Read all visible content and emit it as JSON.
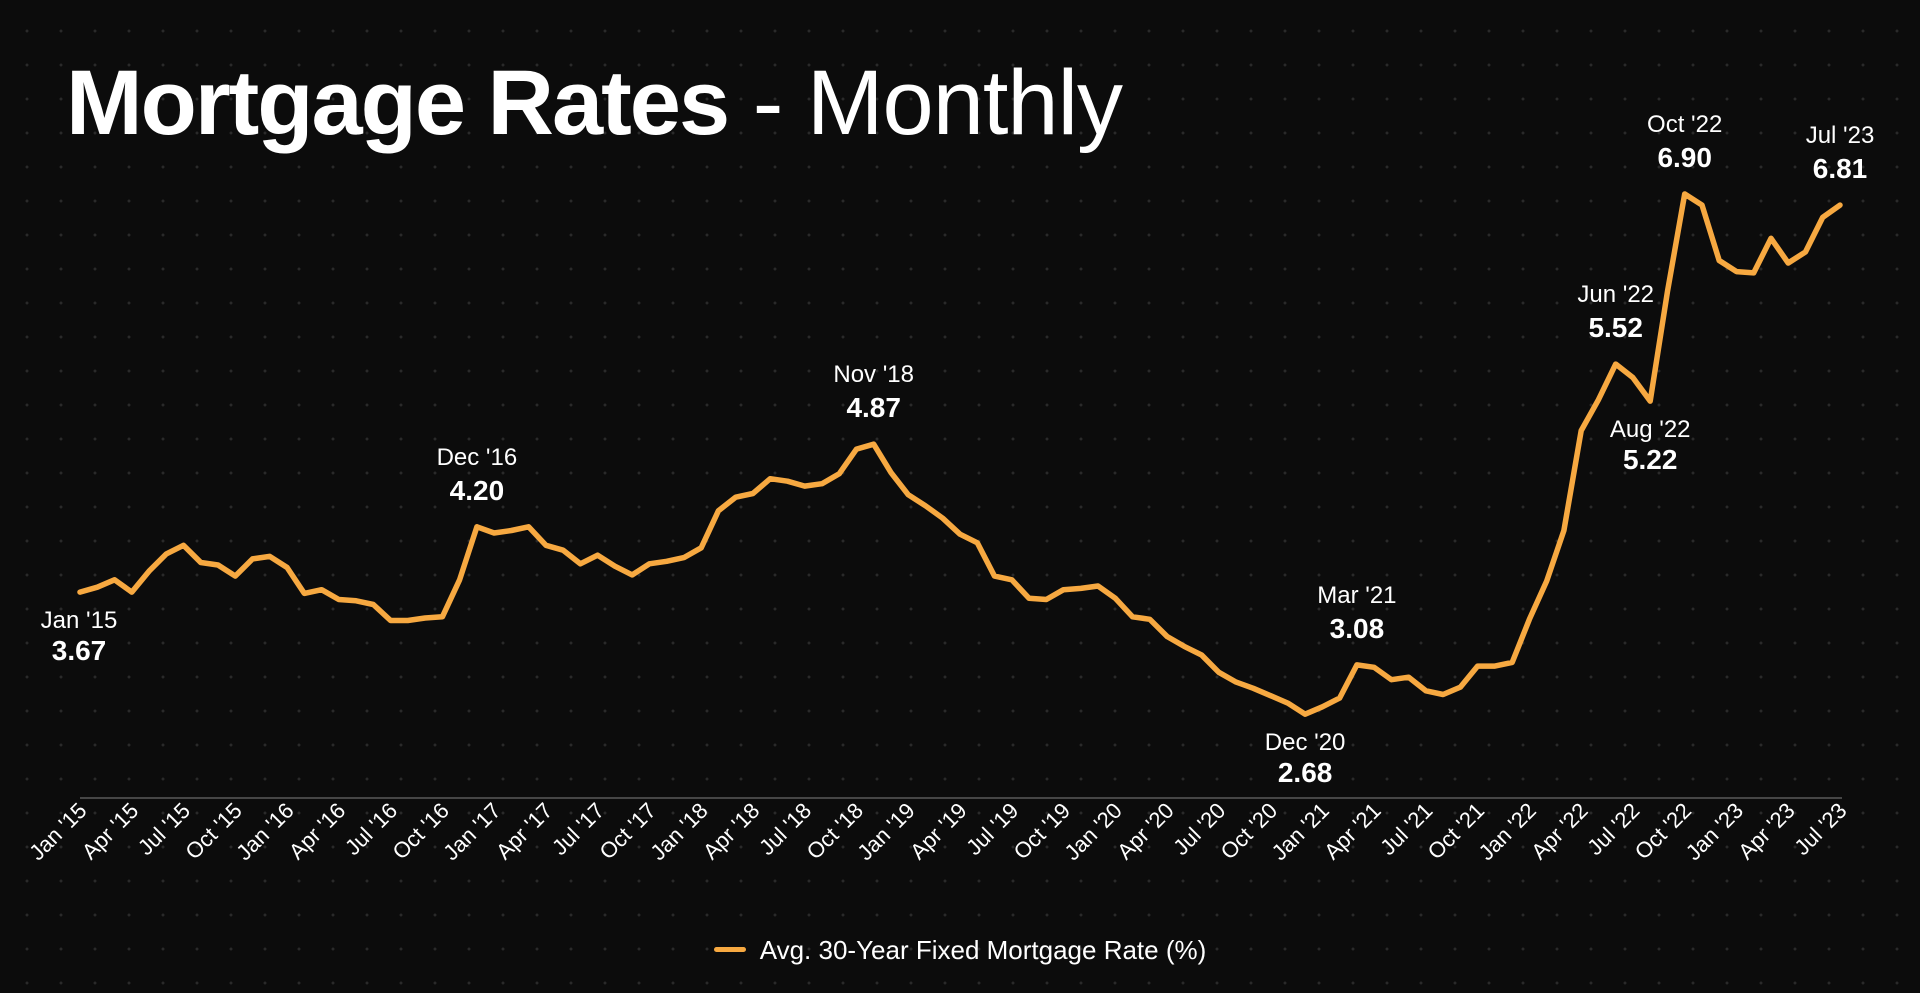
{
  "title": {
    "main": "Mortgage Rates",
    "separator": " - ",
    "sub": "Monthly"
  },
  "colors": {
    "line": "#f7a941",
    "background": "#0c0c0c",
    "axis": "#5a5a5a",
    "text": "#ffffff"
  },
  "chart_data": {
    "type": "line",
    "title": "Mortgage Rates - Monthly",
    "xlabel": "",
    "ylabel": "",
    "ylim": [
      2.0,
      7.5
    ],
    "grid": false,
    "legend_position": "bottom-center",
    "x": [
      "Jan '15",
      "Feb '15",
      "Mar '15",
      "Apr '15",
      "May '15",
      "Jun '15",
      "Jul '15",
      "Aug '15",
      "Sep '15",
      "Oct '15",
      "Nov '15",
      "Dec '15",
      "Jan '16",
      "Feb '16",
      "Mar '16",
      "Apr '16",
      "May '16",
      "Jun '16",
      "Jul '16",
      "Aug '16",
      "Sep '16",
      "Oct '16",
      "Nov '16",
      "Dec '16",
      "Jan '17",
      "Feb '17",
      "Mar '17",
      "Apr '17",
      "May '17",
      "Jun '17",
      "Jul '17",
      "Aug '17",
      "Sep '17",
      "Oct '17",
      "Nov '17",
      "Dec '17",
      "Jan '18",
      "Feb '18",
      "Mar '18",
      "Apr '18",
      "May '18",
      "Jun '18",
      "Jul '18",
      "Aug '18",
      "Sep '18",
      "Oct '18",
      "Nov '18",
      "Dec '18",
      "Jan '19",
      "Feb '19",
      "Mar '19",
      "Apr '19",
      "May '19",
      "Jun '19",
      "Jul '19",
      "Aug '19",
      "Sep '19",
      "Oct '19",
      "Nov '19",
      "Dec '19",
      "Jan '20",
      "Feb '20",
      "Mar '20",
      "Apr '20",
      "May '20",
      "Jun '20",
      "Jul '20",
      "Aug '20",
      "Sep '20",
      "Oct '20",
      "Nov '20",
      "Dec '20",
      "Jan '21",
      "Feb '21",
      "Mar '21",
      "Apr '21",
      "May '21",
      "Jun '21",
      "Jul '21",
      "Aug '21",
      "Sep '21",
      "Oct '21",
      "Nov '21",
      "Dec '21",
      "Jan '22",
      "Feb '22",
      "Mar '22",
      "Apr '22",
      "May '22",
      "Jun '22",
      "Jul '22",
      "Aug '22",
      "Sep '22",
      "Oct '22",
      "Nov '22",
      "Dec '22",
      "Jan '23",
      "Feb '23",
      "Mar '23",
      "Apr '23",
      "May '23",
      "Jun '23",
      "Jul '23"
    ],
    "series": [
      {
        "name": "Avg. 30-Year Fixed Mortgage Rate (%)",
        "values": [
          3.67,
          3.71,
          3.77,
          3.67,
          3.84,
          3.98,
          4.05,
          3.91,
          3.89,
          3.8,
          3.94,
          3.96,
          3.87,
          3.66,
          3.69,
          3.61,
          3.6,
          3.57,
          3.44,
          3.44,
          3.46,
          3.47,
          3.77,
          4.2,
          4.15,
          4.17,
          4.2,
          4.05,
          4.01,
          3.9,
          3.97,
          3.88,
          3.81,
          3.9,
          3.92,
          3.95,
          4.03,
          4.33,
          4.44,
          4.47,
          4.59,
          4.57,
          4.53,
          4.55,
          4.63,
          4.83,
          4.87,
          4.64,
          4.46,
          4.37,
          4.27,
          4.14,
          4.07,
          3.8,
          3.77,
          3.62,
          3.61,
          3.69,
          3.7,
          3.72,
          3.62,
          3.47,
          3.45,
          3.31,
          3.23,
          3.16,
          3.02,
          2.94,
          2.89,
          2.83,
          2.77,
          2.68,
          2.74,
          2.81,
          3.08,
          3.06,
          2.96,
          2.98,
          2.87,
          2.84,
          2.9,
          3.07,
          3.07,
          3.1,
          3.45,
          3.76,
          4.17,
          4.98,
          5.23,
          5.52,
          5.41,
          5.22,
          6.11,
          6.9,
          6.81,
          6.36,
          6.27,
          6.26,
          6.54,
          6.34,
          6.43,
          6.71,
          6.81
        ]
      }
    ],
    "annotations": [
      {
        "index": 0,
        "date": "Jan '15",
        "value": "3.67",
        "pos": "below"
      },
      {
        "index": 23,
        "date": "Dec '16",
        "value": "4.20",
        "pos": "above"
      },
      {
        "index": 46,
        "date": "Nov '18",
        "value": "4.87",
        "pos": "above"
      },
      {
        "index": 71,
        "date": "Dec '20",
        "value": "2.68",
        "pos": "below"
      },
      {
        "index": 74,
        "date": "Mar '21",
        "value": "3.08",
        "pos": "above"
      },
      {
        "index": 89,
        "date": "Jun '22",
        "value": "5.52",
        "pos": "above"
      },
      {
        "index": 91,
        "date": "Aug '22",
        "value": "5.22",
        "pos": "below"
      },
      {
        "index": 93,
        "date": "Oct '22",
        "value": "6.90",
        "pos": "above"
      },
      {
        "index": 102,
        "date": "Jul '23",
        "value": "6.81",
        "pos": "above"
      }
    ],
    "tick_labels": [
      "Jan '15",
      "Apr '15",
      "Jul '15",
      "Oct '15",
      "Jan '16",
      "Apr '16",
      "Jul '16",
      "Oct '16",
      "Jan '17",
      "Apr '17",
      "Jul '17",
      "Oct '17",
      "Jan '18",
      "Apr '18",
      "Jul '18",
      "Oct '18",
      "Jan '19",
      "Apr '19",
      "Jul '19",
      "Oct '19",
      "Jan '20",
      "Apr '20",
      "Jul '20",
      "Oct '20",
      "Jan '21",
      "Apr '21",
      "Jul '21",
      "Oct '21",
      "Jan '22",
      "Apr '22",
      "Jul '22",
      "Oct '22",
      "Jan '23",
      "Apr '23",
      "Jul '23"
    ]
  },
  "legend": {
    "label": "Avg. 30-Year Fixed Mortgage Rate (%)"
  }
}
